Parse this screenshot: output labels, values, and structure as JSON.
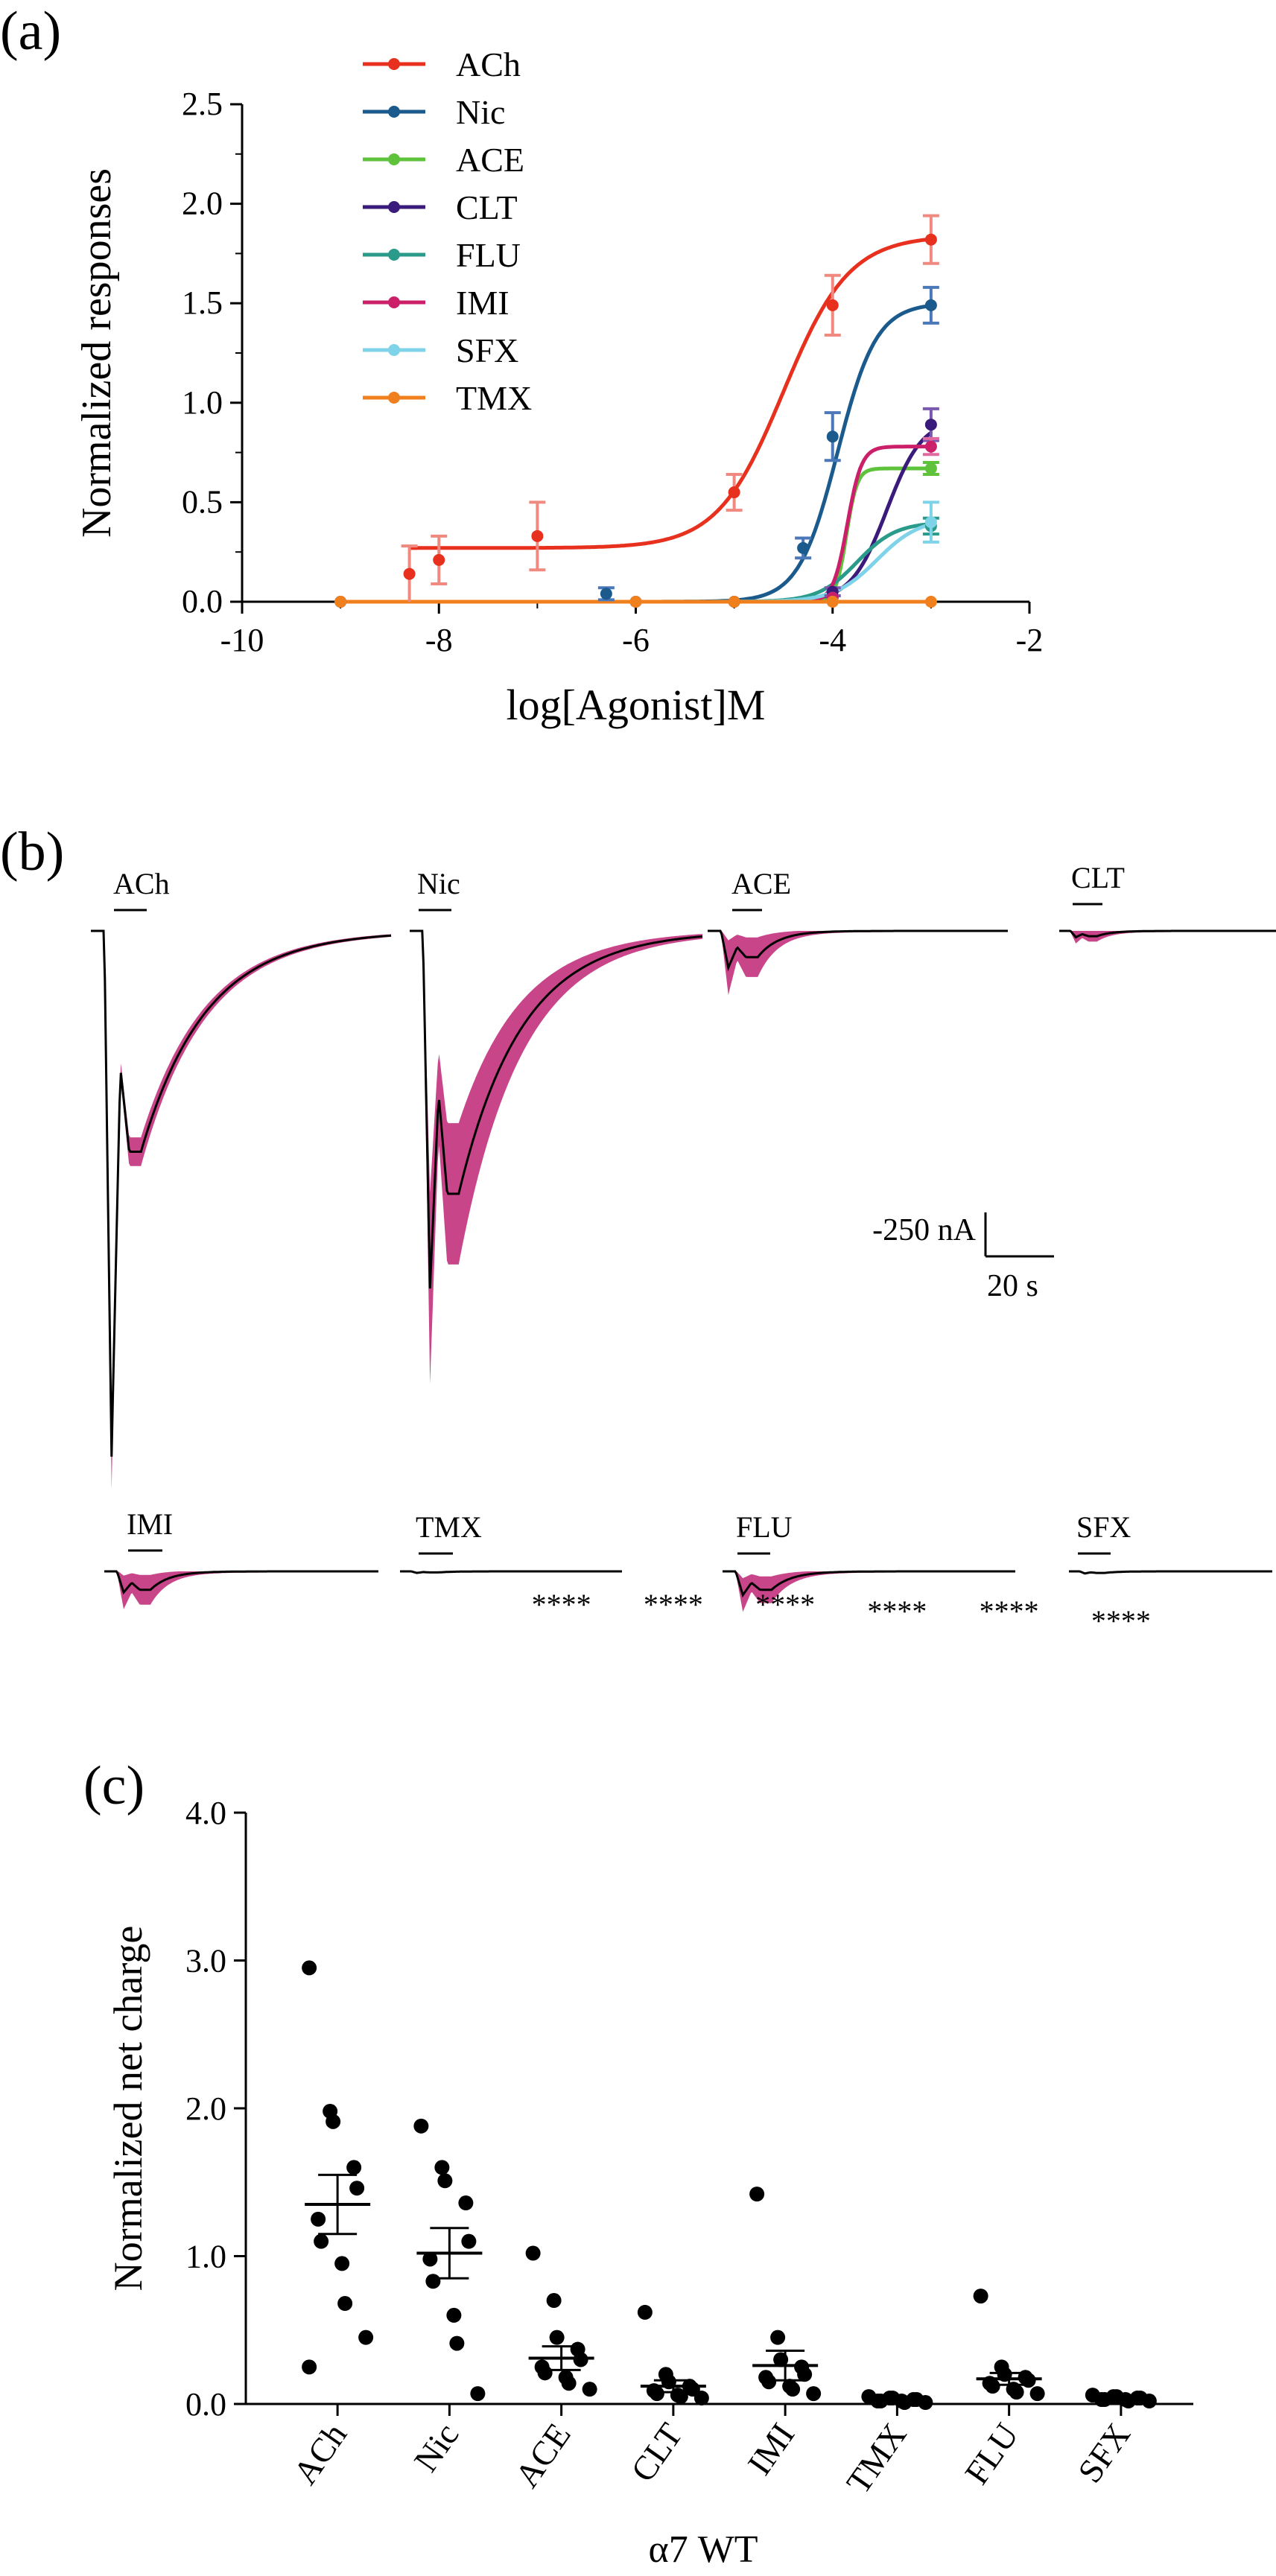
{
  "panels": {
    "a": "(a)",
    "b": "(b)",
    "c": "(c)"
  },
  "chart_data": [
    {
      "panel": "(a)",
      "type": "line",
      "xlabel": "log[Agonist]M",
      "ylabel": "Normalized responses",
      "xlim": [
        -10,
        -2
      ],
      "ylim": [
        0,
        2.5
      ],
      "xticks": [
        -10,
        -8,
        -6,
        -4,
        -2
      ],
      "yticks": [
        0,
        0.5,
        1.0,
        1.5,
        2.0,
        2.5
      ],
      "legend_position": "top-left",
      "series": [
        {
          "name": "ACh",
          "color": "#e8301e",
          "errcolor": "#f08a80",
          "x": [
            -8.3,
            -8.0,
            -7.0,
            -5.0,
            -4.0,
            -3.0
          ],
          "y": [
            0.14,
            0.21,
            0.33,
            0.55,
            1.49,
            1.82
          ],
          "err": [
            0.14,
            0.12,
            0.17,
            0.09,
            0.15,
            0.12
          ],
          "fit": {
            "bottom": 0.27,
            "top": 1.84,
            "ec50": -4.5,
            "hill": 1.3
          }
        },
        {
          "name": "Nic",
          "color": "#1a5a8c",
          "errcolor": "#4b78b8",
          "x": [
            -9.0,
            -6.3,
            -5.0,
            -4.3,
            -4.0,
            -3.0
          ],
          "y": [
            0.0,
            0.04,
            0.0,
            0.27,
            0.83,
            1.49
          ],
          "err": [
            0.0,
            0.03,
            0.0,
            0.05,
            0.12,
            0.09
          ],
          "fit": {
            "bottom": 0.0,
            "top": 1.5,
            "ec50": -3.95,
            "hill": 2.2
          }
        },
        {
          "name": "ACE",
          "color": "#5ec23b",
          "errcolor": "#5ec23b",
          "x": [
            -9.0,
            -6.0,
            -5.0,
            -4.0,
            -3.0
          ],
          "y": [
            0.0,
            0.0,
            0.0,
            0.02,
            0.67
          ],
          "err": [
            0.0,
            0.0,
            0.0,
            0.0,
            0.03
          ],
          "fit": {
            "bottom": 0.0,
            "top": 0.67,
            "ec50": -3.86,
            "hill": 8.0
          }
        },
        {
          "name": "CLT",
          "color": "#3a1a7a",
          "errcolor": "#7a58b0",
          "x": [
            -9.0,
            -6.0,
            -5.0,
            -4.0,
            -3.0
          ],
          "y": [
            0.0,
            0.0,
            0.0,
            0.05,
            0.89
          ],
          "err": [
            0.0,
            0.0,
            0.0,
            0.02,
            0.08
          ],
          "fit": {
            "bottom": 0.0,
            "top": 0.92,
            "ec50": -3.45,
            "hill": 2.4
          }
        },
        {
          "name": "FLU",
          "color": "#2a9a8a",
          "errcolor": "#2a9a8a",
          "x": [
            -9.0,
            -6.0,
            -5.0,
            -4.0,
            -3.0
          ],
          "y": [
            0.0,
            0.0,
            0.0,
            0.02,
            0.38
          ],
          "err": [
            0.0,
            0.0,
            0.0,
            0.0,
            0.04
          ],
          "fit": {
            "bottom": 0.0,
            "top": 0.4,
            "ec50": -3.75,
            "hill": 2.2
          }
        },
        {
          "name": "IMI",
          "color": "#cc1f6a",
          "errcolor": "#e06aa0",
          "x": [
            -9.0,
            -6.0,
            -5.0,
            -4.0,
            -3.0
          ],
          "y": [
            0.0,
            0.0,
            0.0,
            0.02,
            0.78
          ],
          "err": [
            0.0,
            0.0,
            0.0,
            0.0,
            0.04
          ],
          "fit": {
            "bottom": 0.0,
            "top": 0.78,
            "ec50": -3.85,
            "hill": 6.0
          }
        },
        {
          "name": "SFX",
          "color": "#7fd3e8",
          "errcolor": "#7fd3e8",
          "x": [
            -9.0,
            -6.0,
            -5.0,
            -4.0,
            -3.0
          ],
          "y": [
            0.0,
            0.0,
            0.0,
            0.0,
            0.4
          ],
          "err": [
            0.0,
            0.0,
            0.0,
            0.0,
            0.1
          ],
          "fit": {
            "bottom": 0.0,
            "top": 0.42,
            "ec50": -3.55,
            "hill": 2.0
          }
        },
        {
          "name": "TMX",
          "color": "#f0801e",
          "errcolor": "#f0801e",
          "x": [
            -9.0,
            -6.0,
            -5.0,
            -4.0,
            -3.0
          ],
          "y": [
            0.0,
            0.0,
            0.0,
            0.0,
            0.0
          ],
          "err": [
            0.0,
            0.0,
            0.0,
            0.0,
            0.0
          ],
          "fit": {
            "bottom": 0.0,
            "top": 0.0,
            "ec50": -4.0,
            "hill": 1.0
          }
        }
      ]
    },
    {
      "panel": "(b)",
      "type": "other",
      "scale_bar": {
        "current": "-250 nA",
        "time": "20 s"
      },
      "traces": [
        {
          "name": "ACh",
          "peaks": [
            1.0,
            0.42
          ],
          "band": 0.06,
          "decay": "slow"
        },
        {
          "name": "Nic",
          "peaks": [
            0.68,
            0.5
          ],
          "band": 0.18,
          "decay": "slow"
        },
        {
          "name": "ACE",
          "peaks": [
            0.07,
            0.05
          ],
          "band": 0.05,
          "decay": "fast"
        },
        {
          "name": "CLT",
          "peaks": [
            0.012,
            0.01
          ],
          "band": 0.01,
          "decay": "fast"
        },
        {
          "name": "IMI",
          "peaks": [
            0.04,
            0.035
          ],
          "band": 0.03,
          "decay": "fast"
        },
        {
          "name": "TMX",
          "peaks": [
            0.003,
            0.002
          ],
          "band": 0.0,
          "decay": "fast"
        },
        {
          "name": "FLU",
          "peaks": [
            0.045,
            0.035
          ],
          "band": 0.03,
          "decay": "fast"
        },
        {
          "name": "SFX",
          "peaks": [
            0.004,
            0.003
          ],
          "band": 0.0,
          "decay": "fast"
        }
      ]
    },
    {
      "panel": "(c)",
      "type": "scatter",
      "ylabel": "Normalized net charge",
      "xlabel": "α7 WT",
      "ylim": [
        0,
        4.0
      ],
      "yticks": [
        "0.0",
        "1.0",
        "2.0",
        "3.0",
        "4.0"
      ],
      "categories": [
        "ACh",
        "Nic",
        "ACE",
        "CLT",
        "IMI",
        "TMX",
        "FLU",
        "SFX"
      ],
      "significance": [
        "",
        "",
        "****",
        "****",
        "****",
        "****",
        "****",
        "****"
      ],
      "means": [
        1.35,
        1.02,
        0.31,
        0.12,
        0.26,
        0.03,
        0.17,
        0.04
      ],
      "sem": [
        0.2,
        0.17,
        0.08,
        0.04,
        0.1,
        0.01,
        0.04,
        0.01
      ],
      "points": [
        [
          2.95,
          1.98,
          1.91,
          1.6,
          1.46,
          1.25,
          1.1,
          0.95,
          0.68,
          0.45,
          0.25
        ],
        [
          1.88,
          1.6,
          1.51,
          1.36,
          1.1,
          0.98,
          0.83,
          0.6,
          0.41,
          0.07
        ],
        [
          1.02,
          0.7,
          0.45,
          0.37,
          0.3,
          0.25,
          0.21,
          0.18,
          0.14,
          0.1
        ],
        [
          0.62,
          0.2,
          0.15,
          0.12,
          0.1,
          0.09,
          0.07,
          0.06,
          0.05,
          0.04
        ],
        [
          1.42,
          0.45,
          0.3,
          0.25,
          0.2,
          0.18,
          0.15,
          0.12,
          0.1,
          0.07
        ],
        [
          0.05,
          0.04,
          0.04,
          0.03,
          0.03,
          0.02,
          0.02,
          0.02,
          0.01,
          0.01
        ],
        [
          0.73,
          0.25,
          0.2,
          0.18,
          0.16,
          0.14,
          0.12,
          0.1,
          0.08,
          0.07
        ],
        [
          0.06,
          0.05,
          0.05,
          0.04,
          0.04,
          0.03,
          0.03,
          0.03,
          0.02,
          0.02
        ]
      ]
    }
  ]
}
